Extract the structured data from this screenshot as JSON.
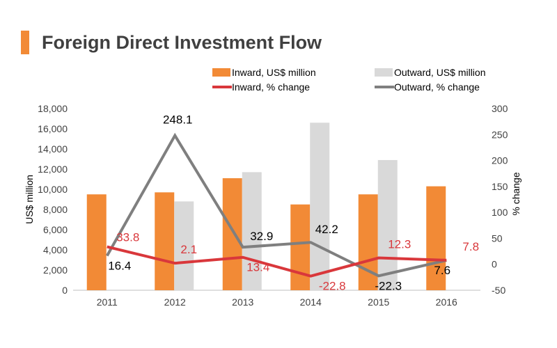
{
  "title": "Foreign Direct Investment Flow",
  "chart_data": {
    "type": "bar+line",
    "categories": [
      "2011",
      "2012",
      "2013",
      "2014",
      "2015",
      "2016"
    ],
    "bar_series": [
      {
        "name": "Inward, US$ million",
        "color": "#f28a36",
        "values": [
          9500,
          9700,
          11100,
          8500,
          9500,
          10300
        ]
      },
      {
        "name": "Outward, US$ million",
        "color": "#d9d9d9",
        "values": [
          null,
          8800,
          11700,
          16600,
          12900,
          null
        ]
      }
    ],
    "line_series": [
      {
        "name": "Inward, % change",
        "color": "#d9373b",
        "label_color": "#d9373b",
        "values": [
          33.8,
          2.1,
          13.4,
          -22.8,
          12.3,
          7.8
        ],
        "labels": [
          "33.8",
          "2.1",
          "13.4",
          "-22.8",
          "12.3",
          "7.8"
        ]
      },
      {
        "name": "Outward, % change",
        "color": "#7f7f7f",
        "label_color": "#000000",
        "values": [
          16.4,
          248.1,
          32.9,
          42.2,
          -22.3,
          7.6
        ],
        "labels": [
          "16.4",
          "248.1",
          "32.9",
          "42.2",
          "-22.3",
          "7.6"
        ]
      }
    ],
    "y_left": {
      "label": "US$ million",
      "min": 0,
      "max": 18000,
      "step": 2000,
      "ticks": [
        "0",
        "2,000",
        "4,000",
        "6,000",
        "8,000",
        "10,000",
        "12,000",
        "14,000",
        "16,000",
        "18,000"
      ]
    },
    "y_right": {
      "label": "% change",
      "min": -50,
      "max": 300,
      "step": 50,
      "ticks": [
        "-50",
        "0",
        "50",
        "100",
        "150",
        "200",
        "250",
        "300"
      ]
    },
    "legend_position": "top"
  }
}
